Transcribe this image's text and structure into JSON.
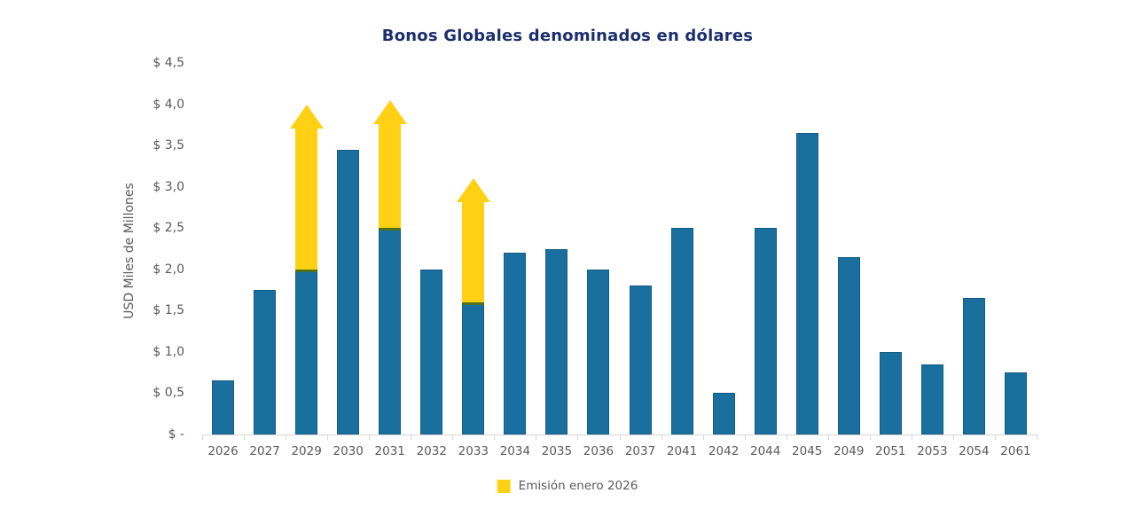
{
  "page_title": "Bonos Globales denominados en dólares",
  "colors": {
    "title_text": "#1c2e6e",
    "axis_text": "#5a5a5a",
    "axis_line": "#d6d6d6",
    "bar": "#19709f",
    "emission": "#ffd014"
  },
  "chart_data": {
    "type": "bar",
    "title": "Bonos Globales denominados en dólares",
    "xlabel": "",
    "ylabel": "USD Miles de Millones",
    "ylim": [
      0,
      4.5
    ],
    "grid": false,
    "legend_position": "bottom",
    "categories": [
      "2026",
      "2027",
      "2029",
      "2030",
      "2031",
      "2032",
      "2033",
      "2034",
      "2035",
      "2036",
      "2037",
      "2041",
      "2042",
      "2044",
      "2045",
      "2049",
      "2051",
      "2053",
      "2054",
      "2061"
    ],
    "values": [
      0.65,
      1.75,
      2.0,
      3.45,
      2.5,
      2.0,
      1.6,
      2.2,
      2.25,
      2.0,
      1.8,
      2.5,
      0.5,
      2.5,
      3.65,
      2.15,
      1.0,
      0.85,
      1.65,
      0.75
    ],
    "bar_color": "#19709f",
    "ytick_values": [
      0,
      0.5,
      1.0,
      1.5,
      2.0,
      2.5,
      3.0,
      3.5,
      4.0,
      4.5
    ],
    "ytick_labels": [
      "$ -",
      "$ 0,5",
      "$ 1,0",
      "$ 1,5",
      "$ 2,0",
      "$ 2,5",
      "$ 3,0",
      "$ 3,5",
      "$ 4,0",
      "$ 4,5"
    ],
    "emission_arrows": [
      {
        "category": "2029",
        "from": 2.0,
        "to": 4.0
      },
      {
        "category": "2031",
        "from": 2.5,
        "to": 4.05
      },
      {
        "category": "2033",
        "from": 1.6,
        "to": 3.1
      }
    ],
    "arrow_color": "#ffd014",
    "legend": [
      {
        "label": "Emisión enero 2026",
        "color": "#ffd014"
      }
    ]
  }
}
